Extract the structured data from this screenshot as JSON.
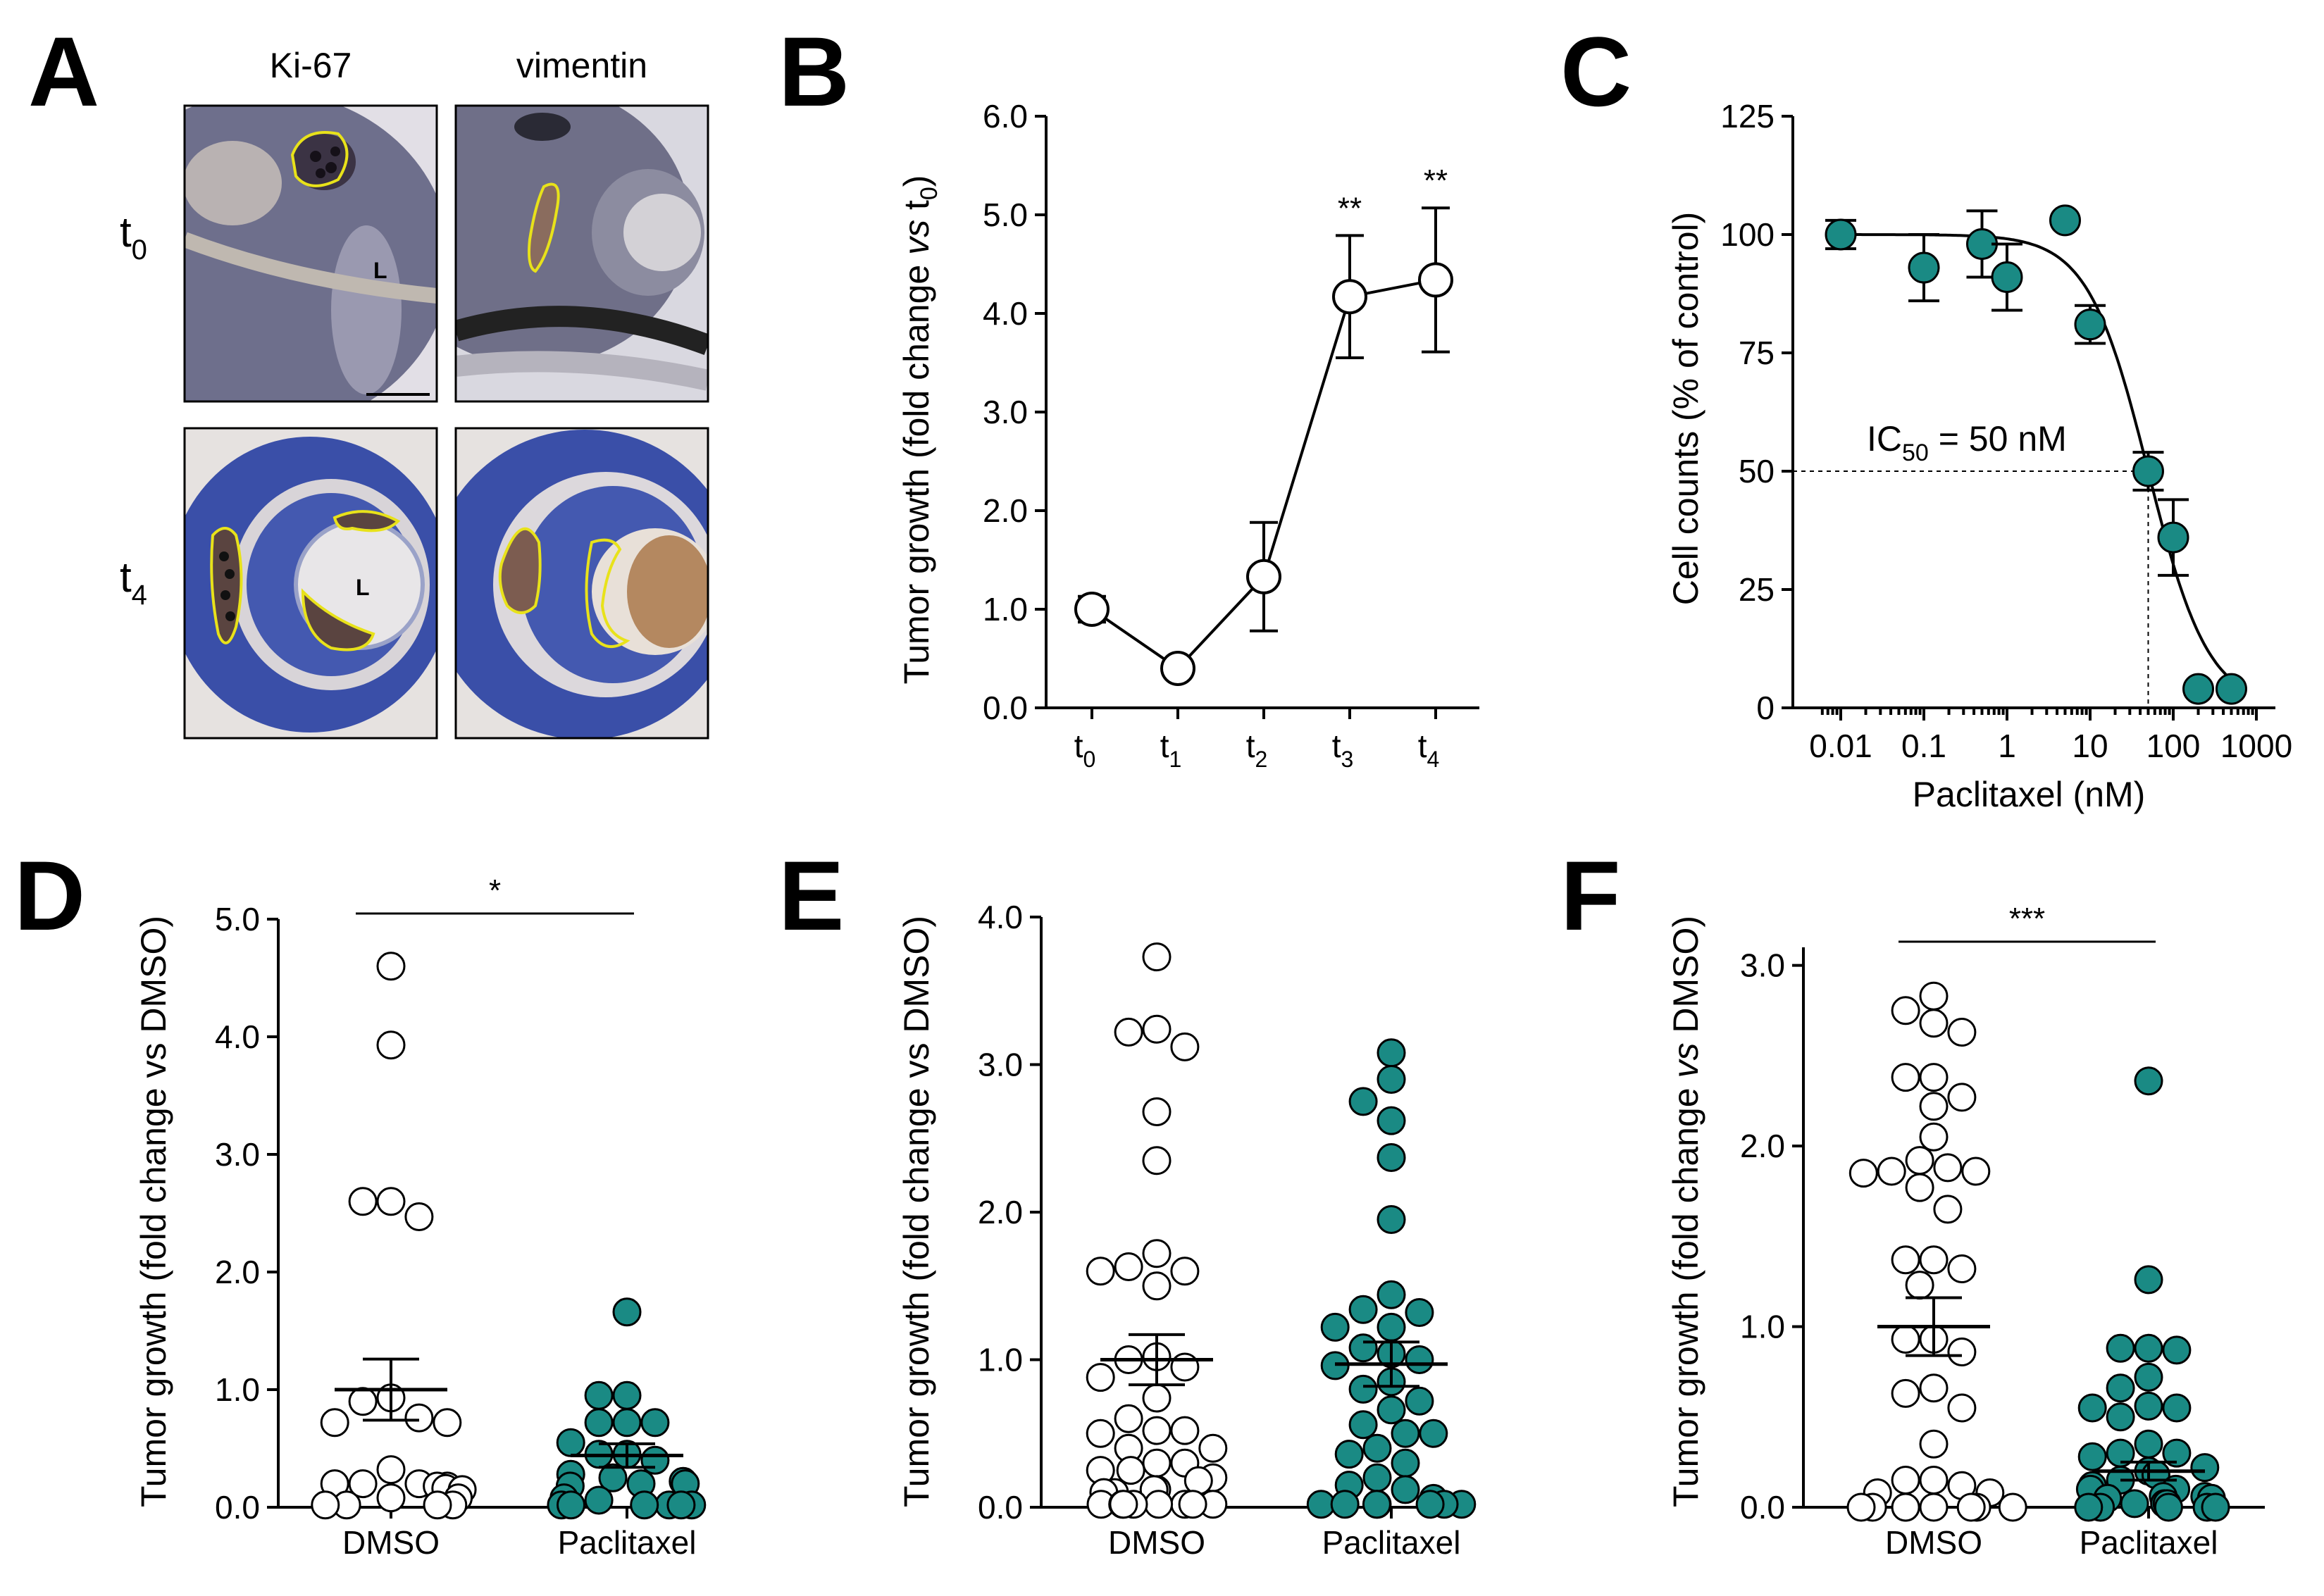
{
  "colors": {
    "teal": "#1a8a84",
    "white": "#ffffff",
    "outline": "#000000",
    "roi": "#e8e21a",
    "hematoxylin": "#5a5a7a",
    "blue_stain": "#3a4fa8"
  },
  "panel_A": {
    "letter": "A",
    "col_labels": [
      "Ki-67",
      "vimentin"
    ],
    "row_labels": [
      {
        "main": "t",
        "sub": "0"
      },
      {
        "main": "t",
        "sub": "4"
      }
    ],
    "lens_label": "L"
  },
  "chart_data": [
    {
      "panel": "B",
      "type": "line",
      "title": "",
      "ylabel_parts": [
        "Tumor growth (fold change ",
        "vs",
        " t",
        "0",
        ")"
      ],
      "ylim": [
        0,
        6
      ],
      "yticks": [
        "0.0",
        "1.0",
        "2.0",
        "3.0",
        "4.0",
        "5.0",
        "6.0"
      ],
      "categories": [
        {
          "main": "t",
          "sub": "0"
        },
        {
          "main": "t",
          "sub": "1"
        },
        {
          "main": "t",
          "sub": "2"
        },
        {
          "main": "t",
          "sub": "3"
        },
        {
          "main": "t",
          "sub": "4"
        }
      ],
      "values": [
        1.0,
        0.4,
        1.33,
        4.17,
        4.34
      ],
      "errors": [
        0.13,
        0.04,
        0.55,
        0.62,
        0.73
      ],
      "annotations": [
        "",
        "",
        "",
        "**",
        "**"
      ]
    },
    {
      "panel": "C",
      "type": "scatter",
      "xscale": "log",
      "xlabel": "Paclitaxel (nM)",
      "ylabel": "Cell counts (% of control)",
      "xlim": [
        0.005,
        1000
      ],
      "ylim": [
        0,
        125
      ],
      "xticks": [
        "0.01",
        "0.1",
        "1",
        "10",
        "100",
        "1000"
      ],
      "yticks": [
        "0",
        "25",
        "50",
        "75",
        "100",
        "125"
      ],
      "x": [
        0.01,
        0.1,
        0.5,
        1,
        5,
        10,
        50,
        100,
        200,
        500
      ],
      "y": [
        100,
        93,
        98,
        91,
        103,
        81,
        50,
        36,
        4,
        4
      ],
      "errors": [
        3,
        7,
        7,
        7,
        0,
        4,
        4,
        8,
        0,
        0
      ],
      "ic50_label": {
        "main": "IC",
        "sub": "50",
        "rest": " = 50 nM"
      },
      "ic50": 50,
      "hill_slope": 1.2
    },
    {
      "panel": "D",
      "type": "scatter",
      "ylabel": "Tumor growth (fold change vs DMSO)",
      "ylim": [
        0,
        5
      ],
      "yticks": [
        "0.0",
        "1.0",
        "2.0",
        "3.0",
        "4.0",
        "5.0"
      ],
      "categories": [
        "DMSO",
        "Paclitaxel"
      ],
      "significance": "*",
      "series": [
        {
          "name": "DMSO",
          "mean": 1.0,
          "sem": 0.26,
          "values": [
            4.6,
            3.93,
            2.6,
            2.6,
            2.47,
            0.93,
            0.72,
            0.72,
            0.76,
            0.9,
            0.32,
            0.2,
            0.2,
            0.18,
            0.16,
            0.18,
            0.08,
            0.08,
            0.02,
            0.02,
            0.02,
            0.02,
            0.2,
            0.15
          ]
        },
        {
          "name": "Paclitaxel",
          "mean": 0.44,
          "sem": 0.1,
          "values": [
            1.66,
            0.95,
            0.95,
            0.72,
            0.72,
            0.72,
            0.55,
            0.45,
            0.45,
            0.4,
            0.28,
            0.25,
            0.22,
            0.2,
            0.2,
            0.18,
            0.08,
            0.06,
            0.02,
            0.02,
            0.02,
            0.02,
            0.02,
            0.02
          ]
        }
      ]
    },
    {
      "panel": "E",
      "type": "scatter",
      "ylabel": "Tumor growth (fold change vs DMSO)",
      "ylim": [
        0,
        4
      ],
      "yticks": [
        "0.0",
        "1.0",
        "2.0",
        "3.0",
        "4.0"
      ],
      "categories": [
        "DMSO",
        "Paclitaxel"
      ],
      "significance": "",
      "series": [
        {
          "name": "DMSO",
          "mean": 1.0,
          "sem": 0.17,
          "values": [
            3.73,
            3.24,
            3.22,
            3.12,
            2.68,
            2.35,
            1.72,
            1.63,
            1.6,
            1.6,
            1.5,
            1.02,
            1.0,
            0.95,
            0.88,
            0.74,
            0.6,
            0.52,
            0.52,
            0.5,
            0.4,
            0.4,
            0.3,
            0.3,
            0.25,
            0.25,
            0.2,
            0.18,
            0.12,
            0.12,
            0.1,
            0.1,
            0.02,
            0.02,
            0.02,
            0.02,
            0.02,
            0.02,
            0.02,
            0.02
          ]
        },
        {
          "name": "Paclitaxel",
          "mean": 0.97,
          "sem": 0.15,
          "values": [
            3.08,
            2.9,
            2.75,
            2.62,
            2.37,
            1.95,
            1.44,
            1.34,
            1.32,
            1.22,
            1.22,
            1.08,
            1.04,
            1.0,
            0.96,
            0.85,
            0.8,
            0.72,
            0.66,
            0.56,
            0.5,
            0.5,
            0.4,
            0.36,
            0.3,
            0.2,
            0.15,
            0.12,
            0.06,
            0.02,
            0.02,
            0.02,
            0.02,
            0.02,
            0.02,
            0.02
          ]
        }
      ]
    },
    {
      "panel": "F",
      "type": "scatter",
      "ylabel_parts": [
        "Tumor growth (fold change ",
        "vs",
        " DMSO)"
      ],
      "ylim": [
        0,
        3.1
      ],
      "yticks": [
        "0.0",
        "1.0",
        "2.0",
        "3.0"
      ],
      "categories": [
        "DMSO",
        "Paclitaxel"
      ],
      "significance": "***",
      "series": [
        {
          "name": "DMSO",
          "mean": 1.0,
          "sem": 0.16,
          "values": [
            2.83,
            2.75,
            2.68,
            2.63,
            2.38,
            2.38,
            2.27,
            2.22,
            2.05,
            1.92,
            1.88,
            1.86,
            1.85,
            1.86,
            1.77,
            1.65,
            1.37,
            1.37,
            1.32,
            1.23,
            0.93,
            0.93,
            0.86,
            0.66,
            0.63,
            0.55,
            0.35,
            0.15,
            0.15,
            0.12,
            0.08,
            0.08,
            0.0,
            0.0,
            0.0,
            0.0,
            0.0,
            0.0,
            0.0,
            0.0
          ]
        },
        {
          "name": "Paclitaxel",
          "mean": 0.2,
          "sem": 0.05,
          "values": [
            2.36,
            1.26,
            0.88,
            0.88,
            0.87,
            0.72,
            0.66,
            0.56,
            0.55,
            0.55,
            0.5,
            0.35,
            0.3,
            0.3,
            0.28,
            0.22,
            0.2,
            0.18,
            0.15,
            0.12,
            0.1,
            0.1,
            0.06,
            0.06,
            0.05,
            0.05,
            0.02,
            0.02,
            0.02,
            0.0,
            0.0,
            0.0,
            0.0,
            0.0
          ]
        }
      ]
    }
  ],
  "panel_letters": [
    "B",
    "C",
    "D",
    "E",
    "F"
  ]
}
